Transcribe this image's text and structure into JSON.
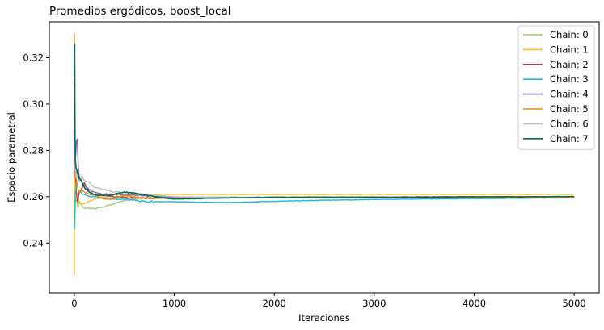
{
  "chart_data": {
    "type": "line",
    "title": "Promedios ergódicos, boost_local",
    "xlabel": "Iteraciones",
    "ylabel": "Espacio parametral",
    "xlim": [
      -250,
      5250
    ],
    "ylim": [
      0.2185,
      0.3355
    ],
    "xticks": [
      0,
      1000,
      2000,
      3000,
      4000,
      5000
    ],
    "yticks": [
      0.24,
      0.26,
      0.28,
      0.3,
      0.32
    ],
    "ytick_labels": [
      "0.24",
      "0.26",
      "0.28",
      "0.30",
      "0.32"
    ],
    "grid": false,
    "legend": "top-right",
    "series": [
      {
        "name": "Chain: 0",
        "color": "#9ecd7a",
        "x": [
          0,
          5,
          10,
          20,
          30,
          40,
          60,
          80,
          100,
          150,
          200,
          250,
          300,
          400,
          500,
          600,
          800,
          1000,
          1500,
          2000,
          3000,
          4000,
          5000
        ],
        "y": [
          0.25,
          0.246,
          0.26,
          0.258,
          0.257,
          0.256,
          0.257,
          0.256,
          0.255,
          0.255,
          0.2548,
          0.2553,
          0.2557,
          0.257,
          0.2585,
          0.259,
          0.2595,
          0.2597,
          0.2598,
          0.2598,
          0.2598,
          0.2599,
          0.26
        ]
      },
      {
        "name": "Chain: 1",
        "color": "#ffbf20",
        "x": [
          0,
          3,
          6,
          10,
          20,
          30,
          50,
          70,
          100,
          150,
          200,
          300,
          400,
          500,
          700,
          1000,
          1500,
          2000,
          3000,
          4000,
          5000
        ],
        "y": [
          0.226,
          0.33,
          0.28,
          0.262,
          0.262,
          0.26,
          0.258,
          0.257,
          0.257,
          0.258,
          0.259,
          0.26,
          0.26,
          0.2605,
          0.261,
          0.261,
          0.261,
          0.261,
          0.261,
          0.261,
          0.261
        ]
      },
      {
        "name": "Chain: 2",
        "color": "#c23a4a",
        "x": [
          0,
          5,
          10,
          20,
          30,
          50,
          80,
          100,
          150,
          200,
          300,
          400,
          600,
          1000,
          1500,
          2000,
          3000,
          4000,
          5000
        ],
        "y": [
          0.27,
          0.29,
          0.27,
          0.262,
          0.258,
          0.262,
          0.264,
          0.266,
          0.262,
          0.261,
          0.2605,
          0.2598,
          0.2595,
          0.2592,
          0.2595,
          0.2598,
          0.2598,
          0.26,
          0.26
        ]
      },
      {
        "name": "Chain: 3",
        "color": "#17becf",
        "x": [
          0,
          5,
          10,
          20,
          40,
          60,
          100,
          150,
          200,
          300,
          500,
          700,
          1000,
          1500,
          2000,
          2500,
          3000,
          4000,
          5000
        ],
        "y": [
          0.246,
          0.25,
          0.262,
          0.266,
          0.263,
          0.262,
          0.261,
          0.26,
          0.26,
          0.259,
          0.259,
          0.258,
          0.2578,
          0.2575,
          0.258,
          0.2585,
          0.2588,
          0.2592,
          0.2595
        ]
      },
      {
        "name": "Chain: 4",
        "color": "#7a6aa8",
        "x": [
          0,
          5,
          10,
          20,
          30,
          40,
          60,
          80,
          100,
          150,
          200,
          300,
          500,
          700,
          1000,
          1500,
          2000,
          3000,
          4000,
          5000
        ],
        "y": [
          0.3,
          0.275,
          0.276,
          0.284,
          0.285,
          0.272,
          0.268,
          0.266,
          0.265,
          0.263,
          0.262,
          0.261,
          0.261,
          0.2605,
          0.2595,
          0.2595,
          0.2597,
          0.2598,
          0.2598,
          0.2598
        ]
      },
      {
        "name": "Chain: 5",
        "color": "#e58a1f",
        "x": [
          0,
          5,
          10,
          20,
          30,
          40,
          60,
          80,
          100,
          150,
          200,
          300,
          400,
          500,
          700,
          1000,
          1500,
          2000,
          3000,
          4000,
          5000
        ],
        "y": [
          0.32,
          0.285,
          0.27,
          0.268,
          0.265,
          0.262,
          0.262,
          0.263,
          0.262,
          0.261,
          0.261,
          0.259,
          0.259,
          0.2605,
          0.2595,
          0.2592,
          0.2595,
          0.2597,
          0.2597,
          0.2596,
          0.2595
        ]
      },
      {
        "name": "Chain: 6",
        "color": "#bdbdbd",
        "x": [
          0,
          5,
          10,
          20,
          30,
          40,
          60,
          80,
          100,
          150,
          200,
          300,
          400,
          500,
          700,
          1000,
          1500,
          2000,
          3000,
          4000,
          5000
        ],
        "y": [
          0.302,
          0.28,
          0.272,
          0.268,
          0.27,
          0.268,
          0.268,
          0.269,
          0.267,
          0.266,
          0.264,
          0.263,
          0.262,
          0.262,
          0.261,
          0.26,
          0.2597,
          0.2597,
          0.2598,
          0.2598,
          0.2598
        ]
      },
      {
        "name": "Chain: 7",
        "color": "#00695c",
        "x": [
          0,
          3,
          6,
          10,
          20,
          30,
          50,
          80,
          100,
          150,
          200,
          300,
          400,
          500,
          600,
          800,
          1000,
          1500,
          2000,
          3000,
          4000,
          5000
        ],
        "y": [
          0.31,
          0.326,
          0.29,
          0.276,
          0.272,
          0.27,
          0.268,
          0.266,
          0.264,
          0.262,
          0.261,
          0.2605,
          0.261,
          0.262,
          0.2615,
          0.26,
          0.259,
          0.2595,
          0.2597,
          0.2598,
          0.2599,
          0.26
        ]
      }
    ]
  }
}
